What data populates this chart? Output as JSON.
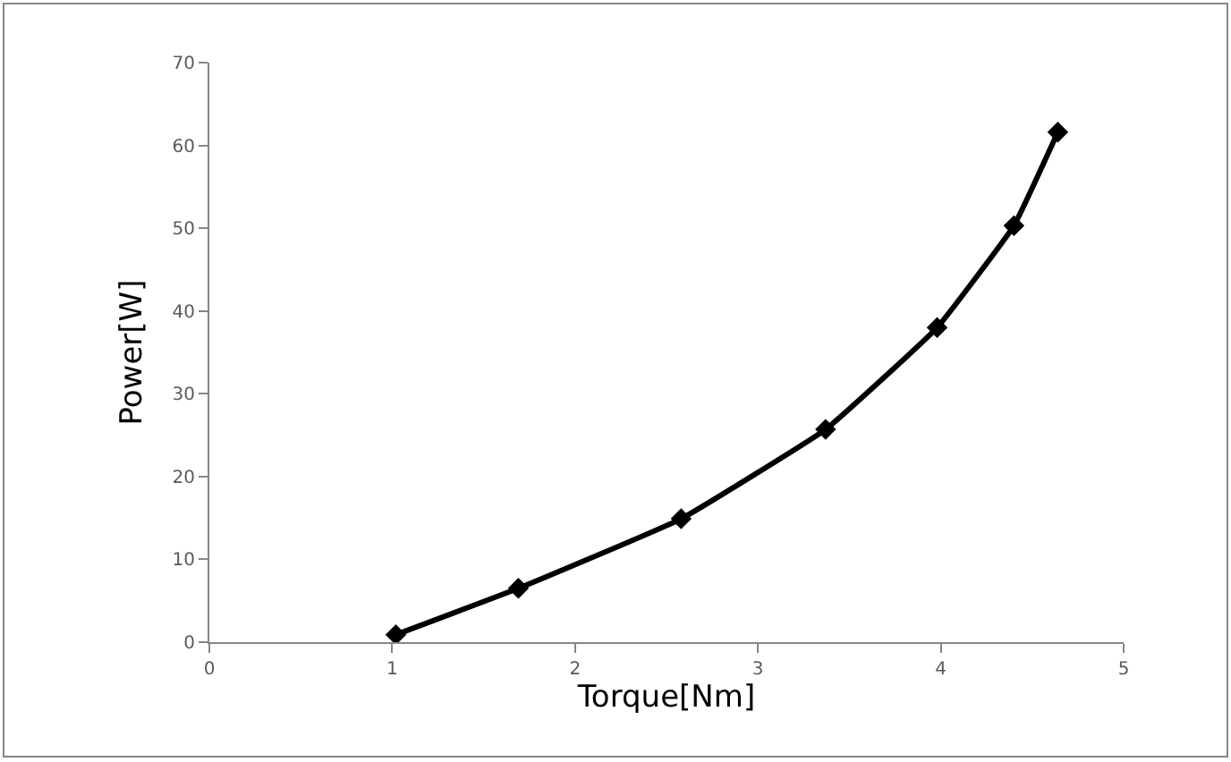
{
  "chart_data": {
    "type": "line",
    "xlabel": "Torque[Nm]",
    "ylabel": "Power[W]",
    "x": [
      1.02,
      1.69,
      2.58,
      3.37,
      3.98,
      4.4,
      4.64
    ],
    "series": [
      {
        "color": "#000000",
        "values": [
          0.9,
          6.5,
          14.9,
          25.7,
          38,
          50.3,
          61.6
        ]
      }
    ],
    "xlim": [
      0,
      5
    ],
    "xticks": [
      0,
      1,
      2,
      3,
      4,
      5
    ],
    "ylim": [
      0,
      70
    ],
    "yticks": [
      0,
      10,
      20,
      30,
      40,
      50,
      60,
      70
    ],
    "legend": false,
    "marker": "diamond",
    "line_style": "solid"
  }
}
